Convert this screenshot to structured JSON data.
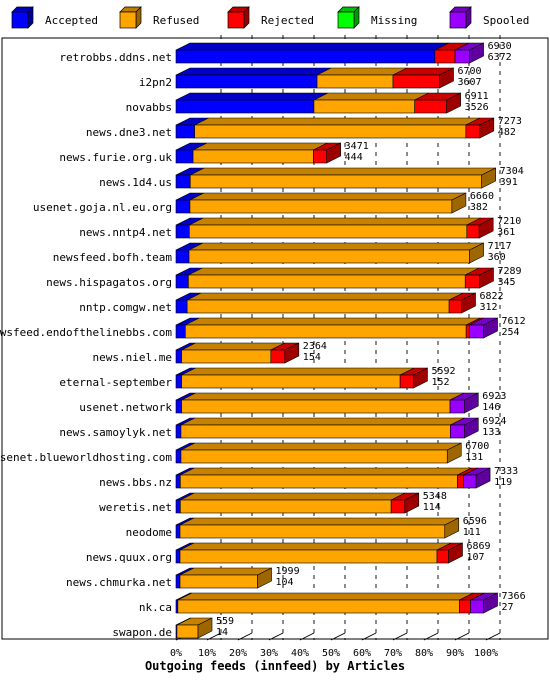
{
  "chart_data": {
    "type": "bar",
    "orientation": "horizontal",
    "stacked": true,
    "xlabel": "Outgoing feeds (innfeed) by Articles",
    "xlim": [
      0,
      100
    ],
    "x_ticks": [
      "0%",
      "10%",
      "20%",
      "30%",
      "40%",
      "50%",
      "60%",
      "70%",
      "80%",
      "90%",
      "100%"
    ],
    "legend_position": "top",
    "grid": true,
    "legend": [
      {
        "name": "Accepted",
        "color": "#0000ff"
      },
      {
        "name": "Refused",
        "color": "#ffa500"
      },
      {
        "name": "Rejected",
        "color": "#ff0000"
      },
      {
        "name": "Missing",
        "color": "#00ff00"
      },
      {
        "name": "Spooled",
        "color": "#9900ff"
      }
    ],
    "categories": [
      {
        "label": "retrobbs.ddns.net",
        "offered": "6930",
        "accepted": "6372",
        "pct": [
          83.5,
          0,
          6.5,
          0,
          4.7
        ]
      },
      {
        "label": "i2pn2",
        "offered": "6700",
        "accepted": "3607",
        "pct": [
          45.5,
          24.5,
          15.0,
          0,
          0
        ]
      },
      {
        "label": "novabbs",
        "offered": "6911",
        "accepted": "3526",
        "pct": [
          44.5,
          32.5,
          10.3,
          0,
          0
        ]
      },
      {
        "label": "news.dne3.net",
        "offered": "7273",
        "accepted": "482",
        "pct": [
          6.0,
          87.5,
          4.5,
          0,
          0
        ]
      },
      {
        "label": "news.furie.org.uk",
        "offered": "3471",
        "accepted": "444",
        "pct": [
          5.5,
          38.8,
          4.3,
          0,
          0
        ]
      },
      {
        "label": "news.1d4.us",
        "offered": "7304",
        "accepted": "391",
        "pct": [
          4.6,
          94.0,
          0,
          0,
          0
        ]
      },
      {
        "label": "usenet.goja.nl.eu.org",
        "offered": "6660",
        "accepted": "382",
        "pct": [
          4.5,
          84.5,
          0,
          0,
          0
        ]
      },
      {
        "label": "news.nntp4.net",
        "offered": "7210",
        "accepted": "361",
        "pct": [
          4.3,
          89.5,
          4.0,
          0,
          0
        ]
      },
      {
        "label": "newsfeed.bofh.team",
        "offered": "7117",
        "accepted": "360",
        "pct": [
          4.2,
          90.5,
          0,
          0,
          0
        ]
      },
      {
        "label": "news.hispagatos.org",
        "offered": "7289",
        "accepted": "345",
        "pct": [
          4.0,
          89.3,
          4.6,
          0,
          0
        ]
      },
      {
        "label": "nntp.comgw.net",
        "offered": "6822",
        "accepted": "312",
        "pct": [
          3.6,
          84.5,
          4.0,
          0,
          0
        ]
      },
      {
        "label": "newsfeed.endofthelinebbs.com",
        "offered": "7612",
        "accepted": "254",
        "pct": [
          3.0,
          90.6,
          1.0,
          0,
          4.6
        ]
      },
      {
        "label": "news.niel.me",
        "offered": "2364",
        "accepted": "154",
        "pct": [
          1.8,
          28.8,
          4.5,
          0,
          0
        ]
      },
      {
        "label": "eternal-september",
        "offered": "5592",
        "accepted": "152",
        "pct": [
          1.8,
          70.5,
          4.3,
          0,
          0
        ]
      },
      {
        "label": "usenet.network",
        "offered": "6923",
        "accepted": "146",
        "pct": [
          1.8,
          86.6,
          0,
          0,
          4.6
        ]
      },
      {
        "label": "news.samoylyk.net",
        "offered": "6924",
        "accepted": "133",
        "pct": [
          1.6,
          86.9,
          0,
          0,
          4.5
        ]
      },
      {
        "label": "usenet.blueworldhosting.com",
        "offered": "6700",
        "accepted": "131",
        "pct": [
          1.6,
          85.9,
          0,
          0,
          0
        ]
      },
      {
        "label": "news.bbs.nz",
        "offered": "7333",
        "accepted": "119",
        "pct": [
          1.4,
          89.4,
          2.0,
          0,
          4.0
        ]
      },
      {
        "label": "weretis.net",
        "offered": "5348",
        "accepted": "114",
        "pct": [
          1.4,
          68.0,
          4.4,
          0,
          0
        ]
      },
      {
        "label": "neodome",
        "offered": "6596",
        "accepted": "111",
        "pct": [
          1.3,
          85.4,
          0,
          0,
          0
        ]
      },
      {
        "label": "news.quux.org",
        "offered": "6869",
        "accepted": "107",
        "pct": [
          1.3,
          82.9,
          3.7,
          0,
          0
        ]
      },
      {
        "label": "news.chmurka.net",
        "offered": "1999",
        "accepted": "104",
        "pct": [
          1.3,
          25.0,
          0,
          0,
          0
        ]
      },
      {
        "label": "nk.ca",
        "offered": "7366",
        "accepted": "27",
        "pct": [
          0.6,
          90.8,
          3.6,
          0,
          4.2
        ]
      },
      {
        "label": "swapon.de",
        "offered": "559",
        "accepted": "14",
        "pct": [
          0.3,
          6.8,
          0,
          0,
          0
        ]
      }
    ]
  }
}
